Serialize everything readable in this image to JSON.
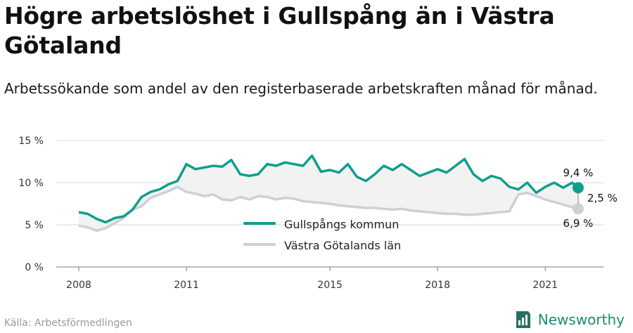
{
  "title": "Högre arbetslöshet i Gullspång än i Västra Götaland",
  "subtitle": "Arbetssökande som andel av den registerbaserade arbetskraften månad för månad.",
  "source": "Källa: Arbetsförmedlingen",
  "brand": "Newsworthy",
  "colors": {
    "kommun": "#0f9e8e",
    "lan": "#cfcfd6",
    "fill": "#f2f2f2",
    "brand": "#1c8c74"
  },
  "chart_data": {
    "type": "line",
    "x_start": "2008-01",
    "x_end": "2021-12",
    "y_ticks": [
      0,
      5,
      10,
      15
    ],
    "y_tick_labels": [
      "0 %",
      "5 %",
      "10 %",
      "15 %"
    ],
    "x_ticks": [
      2008,
      2011,
      2015,
      2018,
      2021
    ],
    "ylim": [
      0,
      15
    ],
    "grid": "horizontal",
    "legend_position": "bottom-center",
    "annotations": {
      "kommun_last": "9,4 %",
      "lan_last": "6,9 %",
      "diff": "2,5 %"
    },
    "series": [
      {
        "name": "Gullspångs kommun",
        "color": "#0f9e8e",
        "points": [
          [
            "2008-01",
            6.5
          ],
          [
            "2008-04",
            6.3
          ],
          [
            "2008-07",
            5.7
          ],
          [
            "2008-10",
            5.3
          ],
          [
            "2009-01",
            5.8
          ],
          [
            "2009-04",
            6.0
          ],
          [
            "2009-07",
            6.8
          ],
          [
            "2009-10",
            8.3
          ],
          [
            "2010-01",
            8.9
          ],
          [
            "2010-04",
            9.2
          ],
          [
            "2010-07",
            9.8
          ],
          [
            "2010-10",
            10.2
          ],
          [
            "2011-01",
            12.2
          ],
          [
            "2011-04",
            11.6
          ],
          [
            "2011-07",
            11.8
          ],
          [
            "2011-10",
            12.0
          ],
          [
            "2012-01",
            11.9
          ],
          [
            "2012-04",
            12.7
          ],
          [
            "2012-07",
            11.0
          ],
          [
            "2012-10",
            10.8
          ],
          [
            "2013-01",
            11.0
          ],
          [
            "2013-04",
            12.2
          ],
          [
            "2013-07",
            12.0
          ],
          [
            "2013-10",
            12.4
          ],
          [
            "2014-01",
            12.2
          ],
          [
            "2014-04",
            12.0
          ],
          [
            "2014-07",
            13.2
          ],
          [
            "2014-10",
            11.3
          ],
          [
            "2015-01",
            11.5
          ],
          [
            "2015-04",
            11.2
          ],
          [
            "2015-07",
            12.2
          ],
          [
            "2015-10",
            10.7
          ],
          [
            "2016-01",
            10.2
          ],
          [
            "2016-04",
            11.0
          ],
          [
            "2016-07",
            12.0
          ],
          [
            "2016-10",
            11.5
          ],
          [
            "2017-01",
            12.2
          ],
          [
            "2017-04",
            11.5
          ],
          [
            "2017-07",
            10.8
          ],
          [
            "2017-10",
            11.2
          ],
          [
            "2018-01",
            11.6
          ],
          [
            "2018-04",
            11.2
          ],
          [
            "2018-07",
            12.0
          ],
          [
            "2018-10",
            12.8
          ],
          [
            "2019-01",
            11.0
          ],
          [
            "2019-04",
            10.2
          ],
          [
            "2019-07",
            10.8
          ],
          [
            "2019-10",
            10.5
          ],
          [
            "2020-01",
            9.5
          ],
          [
            "2020-04",
            9.2
          ],
          [
            "2020-07",
            10.0
          ],
          [
            "2020-10",
            8.8
          ],
          [
            "2021-01",
            9.5
          ],
          [
            "2021-04",
            10.0
          ],
          [
            "2021-07",
            9.4
          ],
          [
            "2021-10",
            10.0
          ],
          [
            "2021-12",
            9.4
          ]
        ]
      },
      {
        "name": "Västra Götalands län",
        "color": "#cfcfd6",
        "points": [
          [
            "2008-01",
            4.9
          ],
          [
            "2008-04",
            4.7
          ],
          [
            "2008-07",
            4.3
          ],
          [
            "2008-10",
            4.6
          ],
          [
            "2009-01",
            5.2
          ],
          [
            "2009-04",
            5.8
          ],
          [
            "2009-07",
            6.8
          ],
          [
            "2009-10",
            7.2
          ],
          [
            "2010-01",
            8.2
          ],
          [
            "2010-04",
            8.6
          ],
          [
            "2010-07",
            9.0
          ],
          [
            "2010-10",
            9.5
          ],
          [
            "2011-01",
            8.9
          ],
          [
            "2011-04",
            8.7
          ],
          [
            "2011-07",
            8.4
          ],
          [
            "2011-10",
            8.6
          ],
          [
            "2012-01",
            8.0
          ],
          [
            "2012-04",
            7.9
          ],
          [
            "2012-07",
            8.3
          ],
          [
            "2012-10",
            8.0
          ],
          [
            "2013-01",
            8.4
          ],
          [
            "2013-04",
            8.3
          ],
          [
            "2013-07",
            8.0
          ],
          [
            "2013-10",
            8.2
          ],
          [
            "2014-01",
            8.1
          ],
          [
            "2014-04",
            7.8
          ],
          [
            "2014-07",
            7.7
          ],
          [
            "2014-10",
            7.6
          ],
          [
            "2015-01",
            7.5
          ],
          [
            "2015-04",
            7.3
          ],
          [
            "2015-07",
            7.2
          ],
          [
            "2015-10",
            7.1
          ],
          [
            "2016-01",
            7.0
          ],
          [
            "2016-04",
            7.0
          ],
          [
            "2016-07",
            6.9
          ],
          [
            "2016-10",
            6.8
          ],
          [
            "2017-01",
            6.9
          ],
          [
            "2017-04",
            6.7
          ],
          [
            "2017-07",
            6.6
          ],
          [
            "2017-10",
            6.5
          ],
          [
            "2018-01",
            6.4
          ],
          [
            "2018-04",
            6.3
          ],
          [
            "2018-07",
            6.3
          ],
          [
            "2018-10",
            6.2
          ],
          [
            "2019-01",
            6.2
          ],
          [
            "2019-04",
            6.3
          ],
          [
            "2019-07",
            6.4
          ],
          [
            "2019-10",
            6.5
          ],
          [
            "2020-01",
            6.6
          ],
          [
            "2020-04",
            8.6
          ],
          [
            "2020-07",
            8.8
          ],
          [
            "2020-10",
            8.4
          ],
          [
            "2021-01",
            8.0
          ],
          [
            "2021-04",
            7.7
          ],
          [
            "2021-07",
            7.4
          ],
          [
            "2021-10",
            7.1
          ],
          [
            "2021-12",
            6.9
          ]
        ]
      }
    ]
  }
}
